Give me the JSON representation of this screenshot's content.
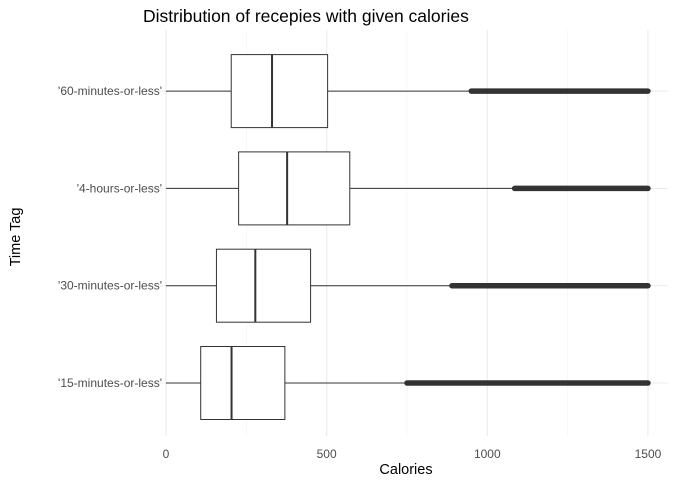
{
  "chart_data": {
    "type": "boxplot",
    "orientation": "horizontal",
    "title": "Distribution of recepies with given calories",
    "xlabel": "Calories",
    "ylabel": "Time Tag",
    "xlim": [
      -50,
      1580
    ],
    "x_ticks": [
      0,
      500,
      1000,
      1500
    ],
    "x_tick_labels": [
      "0",
      "500",
      "1000",
      "1500"
    ],
    "grid": true,
    "legend": "none",
    "colors": {
      "box_fill": "#ffffff",
      "box_line": "#333333",
      "grid_major": "#ebebeb",
      "grid_minor": "#f4f4f4",
      "outlier": "#333333"
    },
    "categories": [
      "'15-minutes-or-less'",
      "'30-minutes-or-less'",
      "'4-hours-or-less'",
      "'60-minutes-or-less'"
    ],
    "boxes": [
      {
        "category": "'15-minutes-or-less'",
        "whisker_low": 0,
        "q1": 108,
        "median": 204,
        "q3": 370,
        "whisker_high": 750,
        "outlier_range": [
          750,
          1500
        ]
      },
      {
        "category": "'30-minutes-or-less'",
        "whisker_low": 0,
        "q1": 157,
        "median": 278,
        "q3": 450,
        "whisker_high": 890,
        "outlier_range": [
          890,
          1500
        ]
      },
      {
        "category": "'4-hours-or-less'",
        "whisker_low": 0,
        "q1": 226,
        "median": 377,
        "q3": 572,
        "whisker_high": 1085,
        "outlier_range": [
          1085,
          1500
        ]
      },
      {
        "category": "'60-minutes-or-less'",
        "whisker_low": 0,
        "q1": 203,
        "median": 330,
        "q3": 503,
        "whisker_high": 950,
        "outlier_range": [
          950,
          1500
        ]
      }
    ]
  }
}
